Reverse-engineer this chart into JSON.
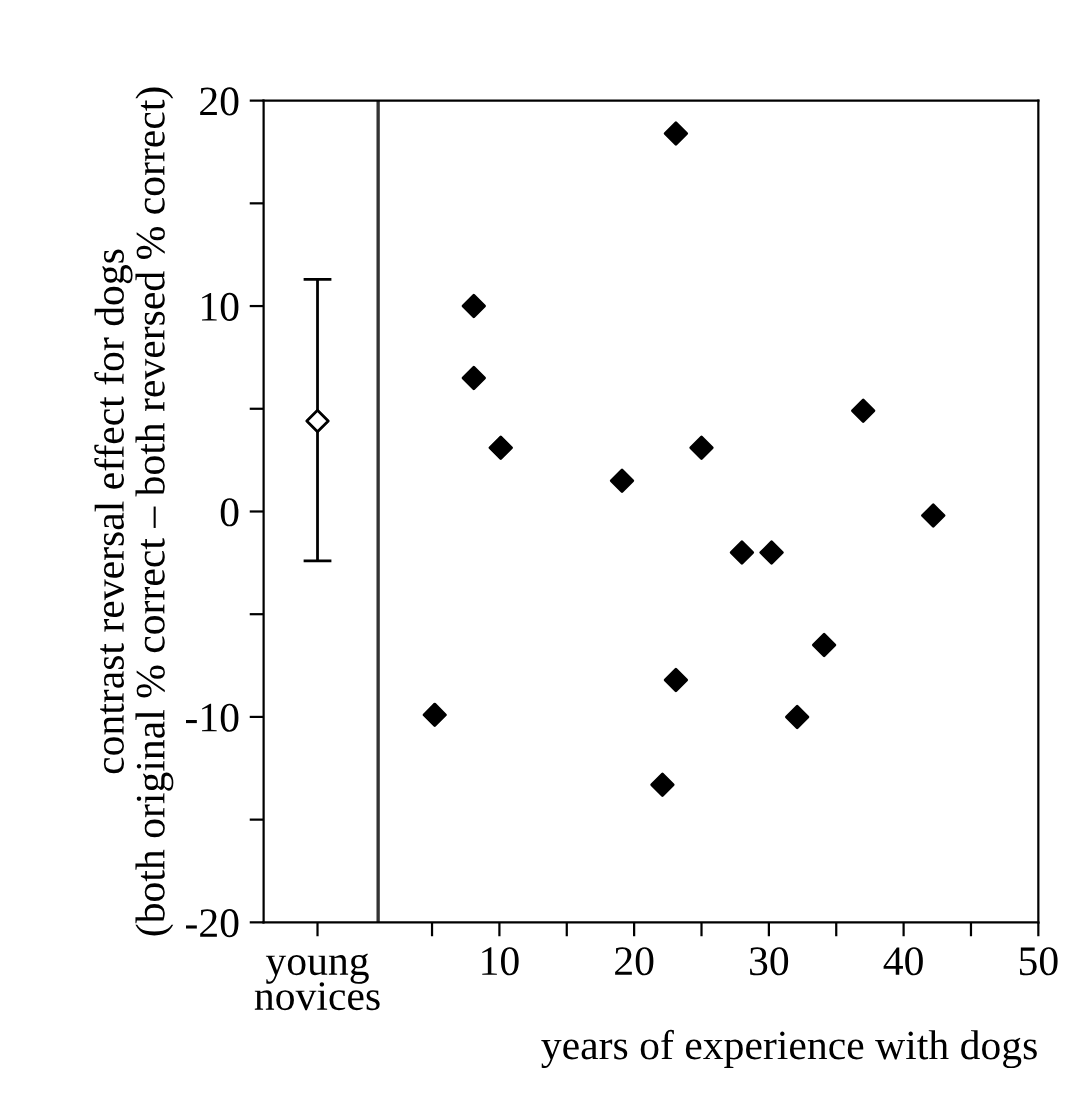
{
  "chart_data": {
    "type": "scatter",
    "xlabel": "years of experience with dogs",
    "ylabel": "contrast reversal effect for dogs\n(both original % correct – both reversed % correct)",
    "series": [
      {
        "x": [
          -3.5
        ],
        "values": [
          4.4
        ],
        "errors": [
          [
            -2.4,
            11.3
          ]
        ],
        "color": "#ffffff"
      },
      {
        "x": [
          23.1,
          8.1,
          8.1,
          10.1,
          25.0,
          19.1,
          37.0,
          42.2,
          28.0,
          30.2,
          5.2,
          23.1,
          22.1,
          32.1,
          34.1
        ],
        "values": [
          18.4,
          10.0,
          6.5,
          3.1,
          3.1,
          1.5,
          4.9,
          -0.2,
          -2.0,
          -2.0,
          -9.9,
          -8.2,
          -13.3,
          -10.0,
          -6.5
        ],
        "color": "#000000"
      }
    ],
    "marker": "diamond",
    "xlim": [
      -7.5,
      50
    ],
    "xticks": [
      {
        "value": -3.5,
        "label": "young\nnovices"
      },
      {
        "value": 5,
        "label": null
      },
      10,
      {
        "value": 15,
        "label": null
      },
      20,
      {
        "value": 25,
        "label": null
      },
      30,
      {
        "value": 35,
        "label": null
      },
      40,
      {
        "value": 45,
        "label": null
      },
      50
    ],
    "ylim": [
      -20,
      20
    ],
    "yticks": [
      -20,
      {
        "value": -15,
        "label": null
      },
      -10,
      {
        "value": -5,
        "label": null
      },
      0,
      {
        "value": 5,
        "label": null
      },
      10,
      {
        "value": 15,
        "label": null
      },
      20
    ],
    "ref_lines": [
      {
        "axis": "x",
        "value": 1,
        "color": "#333333"
      }
    ],
    "grid": false
  }
}
